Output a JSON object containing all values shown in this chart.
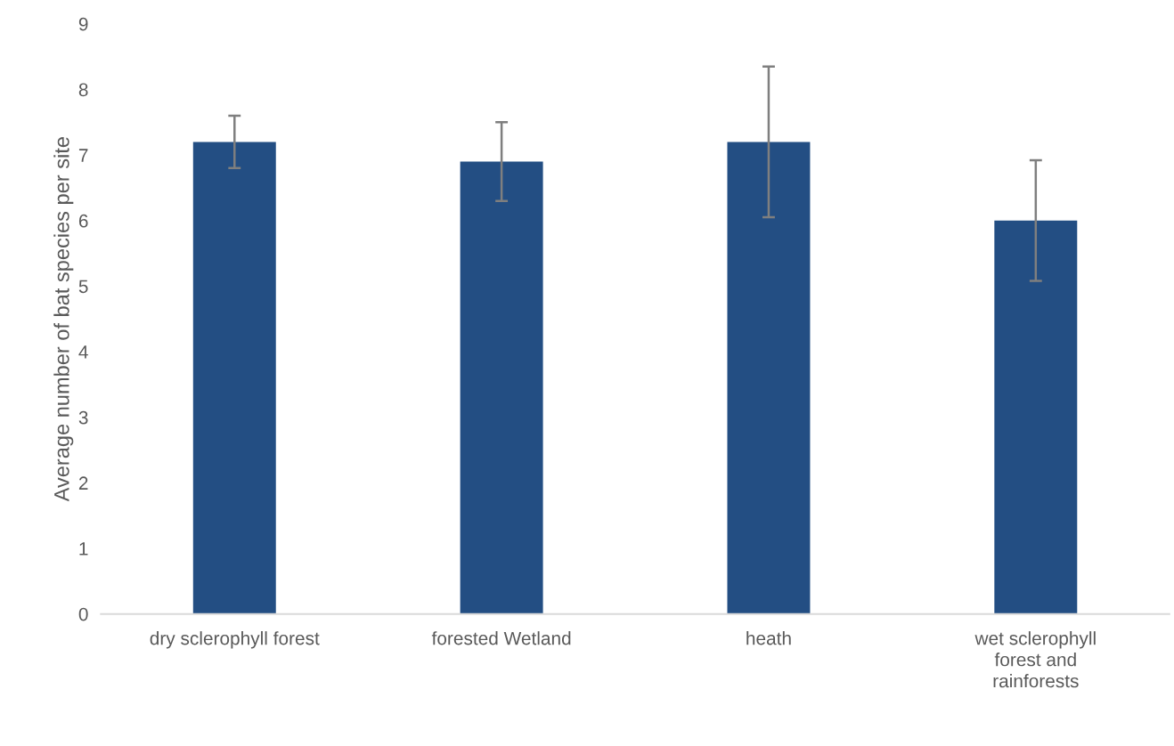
{
  "chart_data": {
    "type": "bar",
    "ylabel": "Average number of bat species per site",
    "categories": [
      "dry sclerophyll forest",
      "forested Wetland",
      "heath",
      "wet sclerophyll\nforest and\nrainforests"
    ],
    "values": [
      7.2,
      6.9,
      7.2,
      6.0
    ],
    "errors": [
      0.4,
      0.6,
      1.15,
      0.92
    ],
    "color": "#234e83",
    "ylim": [
      0,
      9
    ],
    "yticks": [
      0,
      1,
      2,
      3,
      4,
      5,
      6,
      7,
      8,
      9
    ],
    "grid": false,
    "legend": false
  }
}
